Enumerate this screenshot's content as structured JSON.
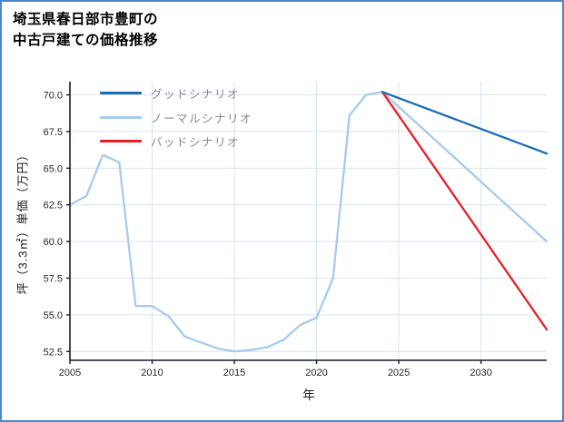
{
  "title": {
    "line1": "埼玉県春日部市豊町の",
    "line2": "中古戸建ての価格推移"
  },
  "colors": {
    "frame_border": "#4a86c9",
    "grid": "#dbe3f0",
    "axis": "#1a1a2b",
    "good": "#1b6cb3",
    "normal": "#a5cbee",
    "bad": "#ea1e25",
    "legend_text": "#8a8a8a"
  },
  "chart_data": {
    "type": "line",
    "title": "埼玉県春日部市豊町の中古戸建ての価格推移",
    "xlabel": "年",
    "ylabel": "坪（3.3㎡）単価（万円）",
    "x_range": [
      2005,
      2034
    ],
    "y_range": [
      51.9,
      70.9
    ],
    "x_ticks": [
      2005,
      2010,
      2015,
      2020,
      2025,
      2030
    ],
    "y_ticks": [
      52.5,
      55.0,
      57.5,
      60.0,
      62.5,
      65.0,
      67.5,
      70.0
    ],
    "grid": true,
    "legend_position": "upper-left",
    "legend": [
      {
        "label": "グッドシナリオ",
        "color": "#1b6cb3"
      },
      {
        "label": "ノーマルシナリオ",
        "color": "#a5cbee"
      },
      {
        "label": "バッドシナリオ",
        "color": "#ea1e25"
      }
    ],
    "series": [
      {
        "name": "ノーマルシナリオ",
        "color": "#a5cbee",
        "x": [
          2005,
          2006,
          2007,
          2008,
          2009,
          2010,
          2011,
          2012,
          2013,
          2014,
          2015,
          2016,
          2017,
          2018,
          2019,
          2020,
          2021,
          2022,
          2023,
          2024,
          2034
        ],
        "values": [
          62.5,
          63.1,
          65.9,
          65.4,
          55.6,
          55.6,
          54.9,
          53.5,
          53.1,
          52.7,
          52.5,
          52.6,
          52.8,
          53.3,
          54.3,
          54.8,
          57.5,
          68.6,
          70.0,
          70.2,
          60.0
        ]
      },
      {
        "name": "バッドシナリオ",
        "color": "#ea1e25",
        "x": [
          2024,
          2034
        ],
        "values": [
          70.2,
          54.0
        ]
      },
      {
        "name": "グッドシナリオ",
        "color": "#1b6cb3",
        "x": [
          2024,
          2034
        ],
        "values": [
          70.2,
          66.0
        ]
      }
    ]
  }
}
